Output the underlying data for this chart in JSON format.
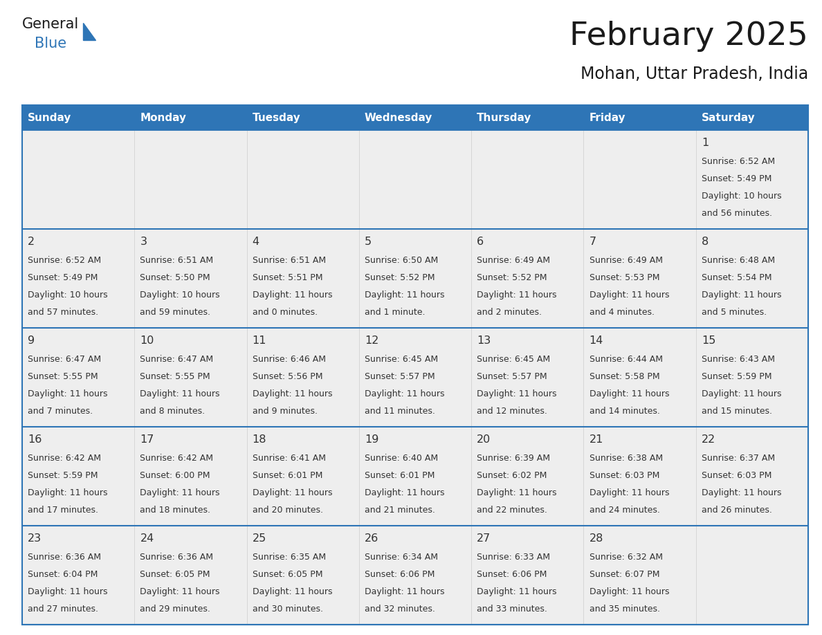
{
  "title": "February 2025",
  "subtitle": "Mohan, Uttar Pradesh, India",
  "header_bg_color": "#2E75B6",
  "header_text_color": "#FFFFFF",
  "cell_bg_color": "#EEEEEE",
  "cell_bg_white": "#FFFFFF",
  "row_separator_color": "#2E75B6",
  "col_separator_color": "#CCCCCC",
  "outer_border_color": "#2E75B6",
  "day_number_color": "#333333",
  "cell_text_color": "#333333",
  "title_color": "#1a1a1a",
  "subtitle_color": "#1a1a1a",
  "weekdays": [
    "Sunday",
    "Monday",
    "Tuesday",
    "Wednesday",
    "Thursday",
    "Friday",
    "Saturday"
  ],
  "days_data": [
    {
      "day": 1,
      "col": 6,
      "row": 0,
      "sunrise": "6:52 AM",
      "sunset": "5:49 PM",
      "daylight_hours": 10,
      "daylight_minutes": 56
    },
    {
      "day": 2,
      "col": 0,
      "row": 1,
      "sunrise": "6:52 AM",
      "sunset": "5:49 PM",
      "daylight_hours": 10,
      "daylight_minutes": 57
    },
    {
      "day": 3,
      "col": 1,
      "row": 1,
      "sunrise": "6:51 AM",
      "sunset": "5:50 PM",
      "daylight_hours": 10,
      "daylight_minutes": 59
    },
    {
      "day": 4,
      "col": 2,
      "row": 1,
      "sunrise": "6:51 AM",
      "sunset": "5:51 PM",
      "daylight_hours": 11,
      "daylight_minutes": 0
    },
    {
      "day": 5,
      "col": 3,
      "row": 1,
      "sunrise": "6:50 AM",
      "sunset": "5:52 PM",
      "daylight_hours": 11,
      "daylight_minutes": 1
    },
    {
      "day": 6,
      "col": 4,
      "row": 1,
      "sunrise": "6:49 AM",
      "sunset": "5:52 PM",
      "daylight_hours": 11,
      "daylight_minutes": 2
    },
    {
      "day": 7,
      "col": 5,
      "row": 1,
      "sunrise": "6:49 AM",
      "sunset": "5:53 PM",
      "daylight_hours": 11,
      "daylight_minutes": 4
    },
    {
      "day": 8,
      "col": 6,
      "row": 1,
      "sunrise": "6:48 AM",
      "sunset": "5:54 PM",
      "daylight_hours": 11,
      "daylight_minutes": 5
    },
    {
      "day": 9,
      "col": 0,
      "row": 2,
      "sunrise": "6:47 AM",
      "sunset": "5:55 PM",
      "daylight_hours": 11,
      "daylight_minutes": 7
    },
    {
      "day": 10,
      "col": 1,
      "row": 2,
      "sunrise": "6:47 AM",
      "sunset": "5:55 PM",
      "daylight_hours": 11,
      "daylight_minutes": 8
    },
    {
      "day": 11,
      "col": 2,
      "row": 2,
      "sunrise": "6:46 AM",
      "sunset": "5:56 PM",
      "daylight_hours": 11,
      "daylight_minutes": 9
    },
    {
      "day": 12,
      "col": 3,
      "row": 2,
      "sunrise": "6:45 AM",
      "sunset": "5:57 PM",
      "daylight_hours": 11,
      "daylight_minutes": 11
    },
    {
      "day": 13,
      "col": 4,
      "row": 2,
      "sunrise": "6:45 AM",
      "sunset": "5:57 PM",
      "daylight_hours": 11,
      "daylight_minutes": 12
    },
    {
      "day": 14,
      "col": 5,
      "row": 2,
      "sunrise": "6:44 AM",
      "sunset": "5:58 PM",
      "daylight_hours": 11,
      "daylight_minutes": 14
    },
    {
      "day": 15,
      "col": 6,
      "row": 2,
      "sunrise": "6:43 AM",
      "sunset": "5:59 PM",
      "daylight_hours": 11,
      "daylight_minutes": 15
    },
    {
      "day": 16,
      "col": 0,
      "row": 3,
      "sunrise": "6:42 AM",
      "sunset": "5:59 PM",
      "daylight_hours": 11,
      "daylight_minutes": 17
    },
    {
      "day": 17,
      "col": 1,
      "row": 3,
      "sunrise": "6:42 AM",
      "sunset": "6:00 PM",
      "daylight_hours": 11,
      "daylight_minutes": 18
    },
    {
      "day": 18,
      "col": 2,
      "row": 3,
      "sunrise": "6:41 AM",
      "sunset": "6:01 PM",
      "daylight_hours": 11,
      "daylight_minutes": 20
    },
    {
      "day": 19,
      "col": 3,
      "row": 3,
      "sunrise": "6:40 AM",
      "sunset": "6:01 PM",
      "daylight_hours": 11,
      "daylight_minutes": 21
    },
    {
      "day": 20,
      "col": 4,
      "row": 3,
      "sunrise": "6:39 AM",
      "sunset": "6:02 PM",
      "daylight_hours": 11,
      "daylight_minutes": 22
    },
    {
      "day": 21,
      "col": 5,
      "row": 3,
      "sunrise": "6:38 AM",
      "sunset": "6:03 PM",
      "daylight_hours": 11,
      "daylight_minutes": 24
    },
    {
      "day": 22,
      "col": 6,
      "row": 3,
      "sunrise": "6:37 AM",
      "sunset": "6:03 PM",
      "daylight_hours": 11,
      "daylight_minutes": 26
    },
    {
      "day": 23,
      "col": 0,
      "row": 4,
      "sunrise": "6:36 AM",
      "sunset": "6:04 PM",
      "daylight_hours": 11,
      "daylight_minutes": 27
    },
    {
      "day": 24,
      "col": 1,
      "row": 4,
      "sunrise": "6:36 AM",
      "sunset": "6:05 PM",
      "daylight_hours": 11,
      "daylight_minutes": 29
    },
    {
      "day": 25,
      "col": 2,
      "row": 4,
      "sunrise": "6:35 AM",
      "sunset": "6:05 PM",
      "daylight_hours": 11,
      "daylight_minutes": 30
    },
    {
      "day": 26,
      "col": 3,
      "row": 4,
      "sunrise": "6:34 AM",
      "sunset": "6:06 PM",
      "daylight_hours": 11,
      "daylight_minutes": 32
    },
    {
      "day": 27,
      "col": 4,
      "row": 4,
      "sunrise": "6:33 AM",
      "sunset": "6:06 PM",
      "daylight_hours": 11,
      "daylight_minutes": 33
    },
    {
      "day": 28,
      "col": 5,
      "row": 4,
      "sunrise": "6:32 AM",
      "sunset": "6:07 PM",
      "daylight_hours": 11,
      "daylight_minutes": 35
    }
  ],
  "num_rows": 5,
  "num_cols": 7,
  "fig_width": 11.88,
  "fig_height": 9.18,
  "logo_text1": "General",
  "logo_text2": "Blue",
  "logo_color1": "#1a1a1a",
  "logo_color2": "#2E75B6",
  "logo_triangle_color": "#2E75B6"
}
